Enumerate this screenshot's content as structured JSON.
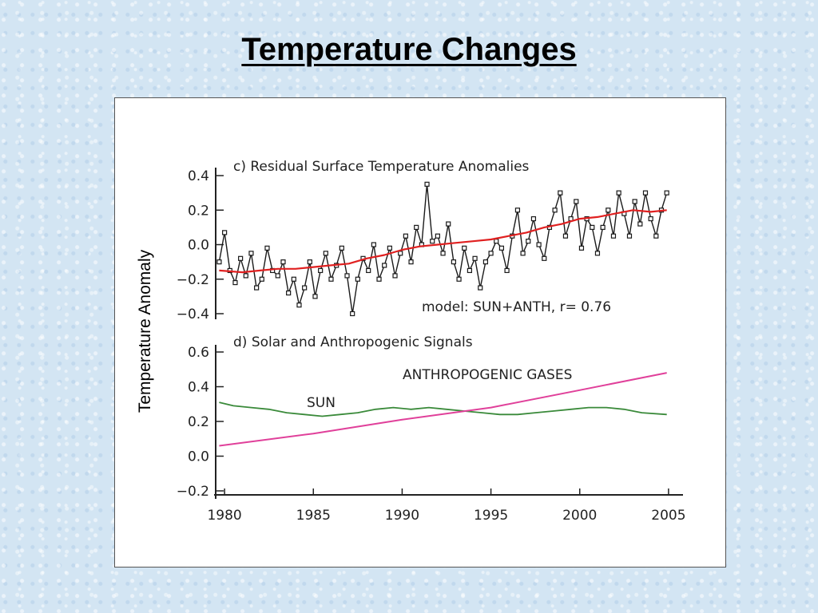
{
  "slide": {
    "title": "Temperature Changes",
    "y_axis_label": "Temperature Anomaly"
  },
  "colors": {
    "observed": "#1a1a1a",
    "model": "#e02020",
    "sun": "#3a8a3a",
    "anthropogenic": "#e0409a",
    "model_label": "#e02020",
    "anthro_label": "#d0409a",
    "sun_label": "#3a8a3a"
  },
  "chart_data": [
    {
      "type": "line",
      "title": "c) Residual Surface Temperature Anomalies",
      "annotation": "model: SUN+ANTH, r= 0.76",
      "ylim": [
        -0.4,
        0.4
      ],
      "y_ticks": [
        "0.4",
        "0.2",
        "0.0",
        "−0.2",
        "−0.4"
      ],
      "y_tick_values": [
        0.4,
        0.2,
        0.0,
        -0.2,
        -0.4
      ],
      "xlim": [
        1979.5,
        2005.5
      ],
      "series": [
        {
          "kind": "observed",
          "x": [
            1979.7,
            1980.0,
            1980.3,
            1980.6,
            1980.9,
            1981.2,
            1981.5,
            1981.8,
            1982.1,
            1982.4,
            1982.7,
            1983.0,
            1983.3,
            1983.6,
            1983.9,
            1984.2,
            1984.5,
            1984.8,
            1985.1,
            1985.4,
            1985.7,
            1986.0,
            1986.3,
            1986.6,
            1986.9,
            1987.2,
            1987.5,
            1987.8,
            1988.1,
            1988.4,
            1988.7,
            1989.0,
            1989.3,
            1989.6,
            1989.9,
            1990.2,
            1990.5,
            1990.8,
            1991.1,
            1991.4,
            1991.7,
            1992.0,
            1992.3,
            1992.6,
            1992.9,
            1993.2,
            1993.5,
            1993.8,
            1994.1,
            1994.4,
            1994.7,
            1995.0,
            1995.3,
            1995.6,
            1995.9,
            1996.2,
            1996.5,
            1996.8,
            1997.1,
            1997.4,
            1997.7,
            1998.0,
            1998.3,
            1998.6,
            1998.9,
            1999.2,
            1999.5,
            1999.8,
            2000.1,
            2000.4,
            2000.7,
            2001.0,
            2001.3,
            2001.6,
            2001.9,
            2002.2,
            2002.5,
            2002.8,
            2003.1,
            2003.4,
            2003.7,
            2004.0,
            2004.3,
            2004.6,
            2004.9
          ],
          "y": [
            -0.1,
            0.07,
            -0.15,
            -0.22,
            -0.08,
            -0.18,
            -0.05,
            -0.25,
            -0.2,
            -0.02,
            -0.15,
            -0.18,
            -0.1,
            -0.28,
            -0.2,
            -0.35,
            -0.25,
            -0.1,
            -0.3,
            -0.15,
            -0.05,
            -0.2,
            -0.12,
            -0.02,
            -0.18,
            -0.4,
            -0.2,
            -0.08,
            -0.15,
            0.0,
            -0.2,
            -0.12,
            -0.02,
            -0.18,
            -0.05,
            0.05,
            -0.1,
            0.1,
            0.0,
            0.35,
            0.02,
            0.05,
            -0.05,
            0.12,
            -0.1,
            -0.2,
            -0.02,
            -0.15,
            -0.08,
            -0.25,
            -0.1,
            -0.05,
            0.02,
            -0.02,
            -0.15,
            0.05,
            0.2,
            -0.05,
            0.02,
            0.15,
            0.0,
            -0.08,
            0.1,
            0.2,
            0.3,
            0.05,
            0.15,
            0.25,
            -0.02,
            0.15,
            0.1,
            -0.05,
            0.1,
            0.2,
            0.05,
            0.3,
            0.18,
            0.05,
            0.25,
            0.12,
            0.3,
            0.15,
            0.05,
            0.2,
            0.3
          ]
        },
        {
          "kind": "model",
          "x": [
            1979.7,
            1981,
            1982,
            1983,
            1984,
            1985,
            1986,
            1987,
            1988,
            1989,
            1990,
            1991,
            1992,
            1993,
            1994,
            1995,
            1996,
            1997,
            1998,
            1999,
            2000,
            2001,
            2002,
            2003,
            2004,
            2004.9
          ],
          "y": [
            -0.15,
            -0.16,
            -0.15,
            -0.14,
            -0.14,
            -0.13,
            -0.12,
            -0.11,
            -0.08,
            -0.06,
            -0.03,
            -0.01,
            0.0,
            0.01,
            0.02,
            0.03,
            0.05,
            0.07,
            0.1,
            0.12,
            0.15,
            0.16,
            0.18,
            0.2,
            0.19,
            0.2
          ]
        }
      ]
    },
    {
      "type": "line",
      "title": "d) Solar and Anthropogenic Signals",
      "ylim": [
        -0.2,
        0.6
      ],
      "y_ticks": [
        "0.6",
        "0.4",
        "0.2",
        "0.0",
        "−0.2"
      ],
      "y_tick_values": [
        0.6,
        0.4,
        0.2,
        0.0,
        -0.2
      ],
      "xlim": [
        1979.5,
        2005.5
      ],
      "x_ticks": [
        "1980",
        "1985",
        "1990",
        "1995",
        "2000",
        "2005"
      ],
      "x_tick_values": [
        1980,
        1985,
        1990,
        1995,
        2000,
        2005
      ],
      "series": [
        {
          "name": "SUN",
          "kind": "sun",
          "x": [
            1979.7,
            1980.5,
            1981.5,
            1982.5,
            1983.5,
            1984.5,
            1985.5,
            1986.5,
            1987.5,
            1988.5,
            1989.5,
            1990.5,
            1991.5,
            1992.5,
            1993.5,
            1994.5,
            1995.5,
            1996.5,
            1997.5,
            1998.5,
            1999.5,
            2000.5,
            2001.5,
            2002.5,
            2003.5,
            2004.9
          ],
          "y": [
            0.31,
            0.29,
            0.28,
            0.27,
            0.25,
            0.24,
            0.23,
            0.24,
            0.25,
            0.27,
            0.28,
            0.27,
            0.28,
            0.27,
            0.26,
            0.25,
            0.24,
            0.24,
            0.25,
            0.26,
            0.27,
            0.28,
            0.28,
            0.27,
            0.25,
            0.24
          ]
        },
        {
          "name": "ANTHROPOGENIC GASES",
          "kind": "anthropogenic",
          "x": [
            1979.7,
            1985,
            1990,
            1995,
            2000,
            2004.9
          ],
          "y": [
            0.06,
            0.13,
            0.21,
            0.28,
            0.38,
            0.48
          ]
        }
      ]
    }
  ]
}
